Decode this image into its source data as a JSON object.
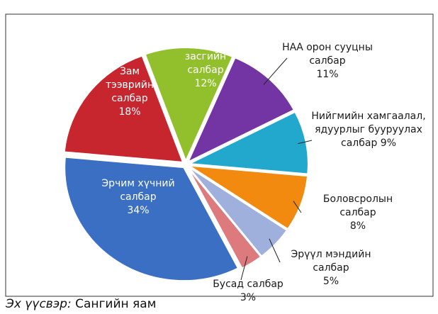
{
  "chart_data": {
    "type": "pie",
    "categories": [
      "Санхүү, эдийн засгийн салбар",
      "НАА орон сууцны салбар",
      "Нийгмийн хамгаалал, ядуурлыг бууруулах салбар",
      "Боловсролын салбар",
      "Эрүүл мэндийн салбар",
      "Бусад салбар",
      "Эрчим хүчний салбар",
      "Зам тээврийн салбар"
    ],
    "values": [
      12,
      11,
      9,
      8,
      5,
      3,
      34,
      18
    ],
    "value_labels": [
      "12%",
      "11%",
      "9%",
      "8%",
      "5%",
      "3%",
      "34%",
      "18%"
    ],
    "colors": [
      "#92c02c",
      "#7334a4",
      "#22a8cc",
      "#f28a10",
      "#9fb0dc",
      "#dd7a7d",
      "#3b6fc4",
      "#c8262e"
    ],
    "source_label": "Эх үүсвэр:",
    "source": "Сангийн яам"
  }
}
